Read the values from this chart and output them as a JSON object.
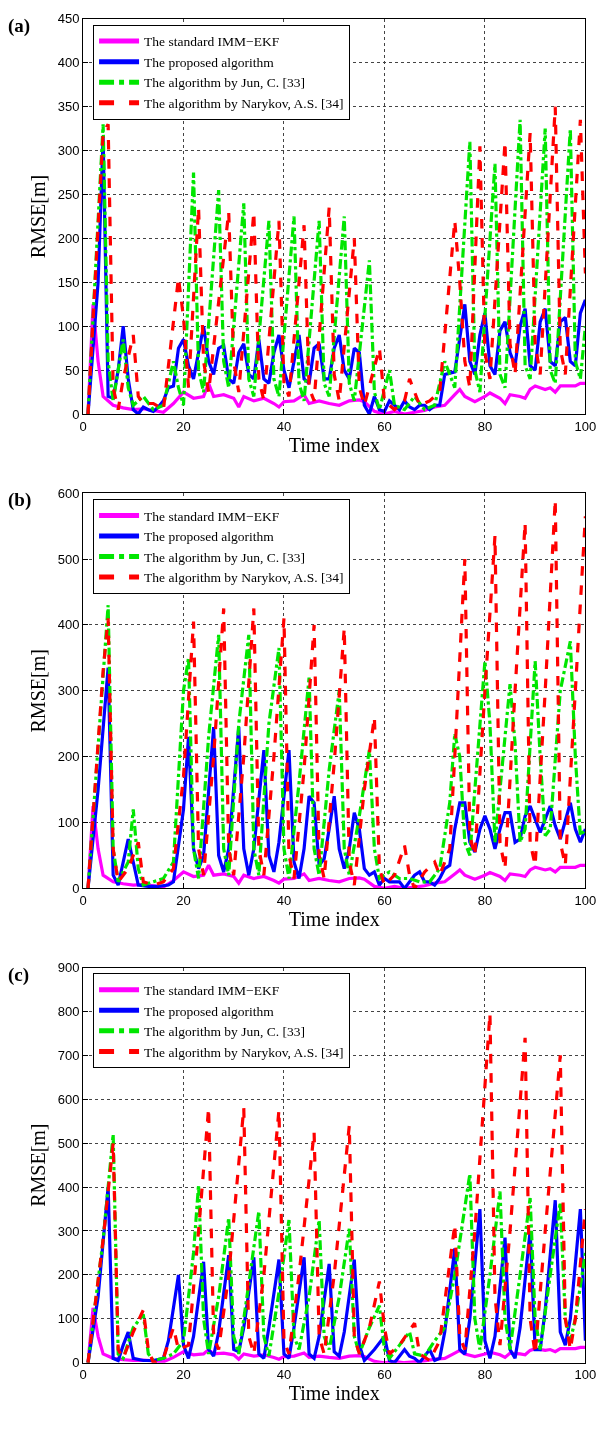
{
  "chart_data": [
    {
      "type": "line",
      "title": "(a)",
      "xlabel": "Time index",
      "ylabel": "RMSE[m]",
      "xlim": [
        0,
        100
      ],
      "xticks": [
        0,
        20,
        40,
        60,
        80,
        100
      ],
      "ylim": [
        0,
        450
      ],
      "yticks": [
        0,
        50,
        100,
        150,
        200,
        250,
        300,
        350,
        400,
        450
      ],
      "grid": true,
      "legend": "top left",
      "series": [
        {
          "name": "The standard IMM−EKF",
          "color": "#ff00ff",
          "line_style": "solid",
          "x": [
            1,
            2,
            3,
            4,
            6,
            8,
            10,
            12,
            14,
            16,
            18,
            20,
            22,
            24,
            25,
            26,
            28,
            30,
            31,
            32,
            34,
            36,
            38,
            39,
            40,
            42,
            44,
            45,
            47,
            49,
            51,
            53,
            55,
            56,
            58,
            60,
            62,
            64,
            66,
            68,
            70,
            72,
            74,
            75,
            76,
            78,
            80,
            81,
            83,
            84,
            85,
            87,
            88,
            89,
            90,
            92,
            93,
            94,
            95,
            97,
            98,
            99,
            100
          ],
          "values": [
            0,
            125,
            60,
            20,
            10,
            7,
            5,
            6,
            4,
            2,
            12,
            25,
            18,
            20,
            35,
            20,
            22,
            18,
            8,
            20,
            15,
            18,
            12,
            8,
            14,
            15,
            22,
            12,
            15,
            12,
            10,
            15,
            16,
            14,
            3,
            0,
            3,
            0,
            2,
            4,
            8,
            10,
            22,
            28,
            20,
            14,
            20,
            24,
            18,
            12,
            22,
            20,
            18,
            28,
            32,
            28,
            30,
            25,
            32,
            32,
            32,
            35,
            35
          ]
        },
        {
          "name": "The proposed algorithm",
          "color": "#0000ff",
          "line_style": "solid",
          "x": [
            1,
            3,
            4,
            5,
            6,
            7,
            8,
            9,
            10,
            11,
            12,
            13,
            14,
            15,
            16,
            17,
            18,
            19,
            20,
            21,
            22,
            24,
            25,
            26,
            27,
            28,
            29,
            30,
            31,
            32,
            33,
            34,
            35,
            36,
            37,
            38,
            39,
            40,
            41,
            42,
            43,
            44,
            45,
            46,
            47,
            48,
            49,
            50,
            51,
            52,
            53,
            54,
            55,
            56,
            57,
            58,
            59,
            60,
            61,
            62,
            63,
            64,
            65,
            66,
            67,
            68,
            69,
            70,
            71,
            72,
            74,
            76,
            77,
            78,
            79,
            80,
            81,
            82,
            83,
            84,
            85,
            86,
            87,
            88,
            89,
            90,
            91,
            92,
            93,
            94,
            95,
            96,
            97,
            98,
            99,
            100
          ],
          "values": [
            0,
            150,
            315,
            20,
            18,
            50,
            100,
            40,
            5,
            0,
            8,
            5,
            3,
            8,
            15,
            30,
            32,
            75,
            85,
            55,
            40,
            100,
            60,
            45,
            75,
            78,
            40,
            35,
            70,
            80,
            45,
            40,
            85,
            40,
            35,
            70,
            90,
            50,
            30,
            60,
            90,
            40,
            35,
            75,
            80,
            40,
            40,
            75,
            90,
            50,
            40,
            75,
            70,
            10,
            0,
            20,
            5,
            3,
            15,
            10,
            5,
            15,
            8,
            5,
            10,
            10,
            5,
            10,
            10,
            45,
            48,
            125,
            60,
            45,
            90,
            115,
            55,
            45,
            95,
            105,
            70,
            55,
            100,
            120,
            55,
            50,
            105,
            120,
            60,
            55,
            105,
            110,
            60,
            55,
            115,
            130
          ]
        },
        {
          "name": "The algorithm by Jun, C. [33]",
          "color": "#00e600",
          "line_style": "dashdot",
          "x": [
            1,
            4,
            5,
            6,
            7,
            8,
            9,
            10,
            12,
            14,
            16,
            18,
            19,
            20,
            22,
            23,
            24,
            27,
            28,
            29,
            32,
            33,
            34,
            37,
            38,
            39,
            42,
            43,
            44,
            47,
            48,
            49,
            52,
            53,
            54,
            57,
            58,
            59,
            61,
            62,
            64,
            66,
            68,
            70,
            72,
            74,
            77,
            78,
            79,
            82,
            83,
            84,
            87,
            88,
            89,
            92,
            93,
            94,
            97,
            98,
            99,
            100
          ],
          "values": [
            0,
            330,
            60,
            15,
            50,
            85,
            30,
            10,
            20,
            5,
            10,
            60,
            30,
            10,
            275,
            50,
            25,
            255,
            60,
            30,
            240,
            40,
            20,
            220,
            40,
            20,
            225,
            35,
            15,
            220,
            35,
            20,
            225,
            35,
            15,
            175,
            25,
            5,
            50,
            10,
            5,
            20,
            5,
            10,
            60,
            30,
            310,
            50,
            25,
            285,
            45,
            30,
            335,
            55,
            40,
            325,
            50,
            35,
            325,
            60,
            40,
            100
          ]
        },
        {
          "name": "The algorithm by Narykov, A.S. [34]",
          "color": "#ff0000",
          "line_style": "dashed",
          "x": [
            1,
            4,
            5,
            6,
            7,
            8,
            10,
            11,
            12,
            14,
            16,
            19,
            20,
            21,
            23,
            24,
            25,
            29,
            30,
            31,
            34,
            35,
            36,
            39,
            40,
            41,
            44,
            45,
            46,
            49,
            50,
            51,
            54,
            55,
            56,
            59,
            60,
            62,
            64,
            65,
            67,
            69,
            71,
            74,
            75,
            76,
            77,
            79,
            80,
            81,
            84,
            85,
            86,
            89,
            90,
            91,
            94,
            95,
            96,
            99,
            100
          ],
          "values": [
            0,
            320,
            330,
            30,
            5,
            40,
            90,
            20,
            12,
            12,
            5,
            155,
            110,
            30,
            235,
            60,
            25,
            230,
            60,
            25,
            230,
            40,
            15,
            220,
            35,
            20,
            215,
            30,
            15,
            235,
            45,
            15,
            200,
            30,
            10,
            75,
            15,
            5,
            15,
            40,
            10,
            15,
            25,
            220,
            150,
            60,
            30,
            305,
            70,
            40,
            310,
            80,
            45,
            320,
            80,
            45,
            350,
            75,
            45,
            335,
            160
          ]
        }
      ]
    },
    {
      "type": "line",
      "title": "(b)",
      "xlabel": "Time index",
      "ylabel": "RMSE[m]",
      "xlim": [
        0,
        100
      ],
      "xticks": [
        0,
        20,
        40,
        60,
        80,
        100
      ],
      "ylim": [
        0,
        600
      ],
      "yticks": [
        0,
        100,
        200,
        300,
        400,
        500,
        600
      ],
      "grid": true,
      "legend": "top left",
      "series": [
        {
          "name": "The standard IMM−EKF",
          "color": "#ff00ff",
          "line_style": "solid",
          "x": [
            1,
            2,
            3,
            4,
            6,
            8,
            10,
            12,
            14,
            16,
            18,
            20,
            22,
            24,
            25,
            26,
            28,
            30,
            31,
            32,
            34,
            36,
            38,
            39,
            40,
            42,
            44,
            45,
            47,
            49,
            51,
            53,
            55,
            56,
            58,
            60,
            62,
            64,
            66,
            68,
            70,
            72,
            74,
            75,
            76,
            78,
            80,
            81,
            83,
            84,
            85,
            87,
            88,
            89,
            90,
            92,
            93,
            94,
            95,
            97,
            98,
            99,
            100
          ],
          "values": [
            0,
            125,
            60,
            20,
            10,
            7,
            5,
            6,
            4,
            2,
            12,
            25,
            18,
            20,
            35,
            20,
            22,
            18,
            8,
            20,
            15,
            18,
            12,
            8,
            14,
            15,
            22,
            12,
            15,
            12,
            10,
            15,
            16,
            14,
            3,
            0,
            3,
            0,
            2,
            4,
            8,
            10,
            22,
            28,
            20,
            14,
            20,
            24,
            18,
            12,
            22,
            20,
            18,
            28,
            32,
            28,
            30,
            25,
            32,
            32,
            32,
            35,
            35
          ]
        },
        {
          "name": "The proposed algorithm",
          "color": "#0000ff",
          "line_style": "solid",
          "x": [
            1,
            3,
            5,
            6,
            7,
            9,
            10,
            11,
            13,
            15,
            17,
            18,
            20,
            21,
            22,
            23,
            24,
            26,
            27,
            28,
            29,
            31,
            32,
            33,
            34,
            36,
            37,
            38,
            39,
            41,
            42,
            43,
            44,
            45,
            46,
            47,
            48,
            49,
            50,
            51,
            52,
            53,
            54,
            55,
            56,
            57,
            58,
            59,
            60,
            61,
            63,
            64,
            66,
            67,
            68,
            69,
            70,
            71,
            72,
            73,
            74,
            75,
            76,
            77,
            78,
            79,
            80,
            81,
            82,
            83,
            84,
            85,
            86,
            87,
            88,
            89,
            90,
            91,
            93,
            94,
            95,
            97,
            98,
            99,
            100
          ],
          "values": [
            0,
            150,
            335,
            20,
            5,
            75,
            40,
            5,
            3,
            3,
            5,
            10,
            120,
            230,
            60,
            30,
            50,
            245,
            50,
            25,
            60,
            245,
            60,
            20,
            60,
            210,
            50,
            25,
            70,
            210,
            40,
            15,
            60,
            140,
            130,
            35,
            45,
            90,
            140,
            60,
            30,
            60,
            115,
            90,
            30,
            20,
            25,
            5,
            15,
            10,
            10,
            0,
            20,
            25,
            10,
            10,
            5,
            15,
            30,
            35,
            90,
            130,
            130,
            70,
            55,
            90,
            110,
            90,
            60,
            90,
            115,
            115,
            70,
            75,
            110,
            125,
            105,
            85,
            125,
            95,
            75,
            130,
            90,
            70,
            90
          ]
        },
        {
          "name": "The algorithm by Jun, C. [33]",
          "color": "#00e600",
          "line_style": "dashdot",
          "x": [
            1,
            5,
            6,
            7,
            9,
            10,
            11,
            12,
            14,
            16,
            18,
            20,
            21,
            22,
            23,
            25,
            27,
            28,
            29,
            31,
            33,
            34,
            35,
            37,
            39,
            40,
            41,
            43,
            45,
            46,
            47,
            49,
            51,
            52,
            53,
            55,
            57,
            58,
            59,
            61,
            63,
            65,
            67,
            69,
            71,
            73,
            74,
            75,
            76,
            77,
            78,
            80,
            81,
            82,
            83,
            85,
            86,
            87,
            88,
            90,
            91,
            92,
            93,
            95,
            97,
            98,
            99,
            100
          ],
          "values": [
            0,
            430,
            60,
            10,
            40,
            120,
            30,
            5,
            10,
            15,
            40,
            300,
            350,
            60,
            15,
            230,
            385,
            60,
            20,
            250,
            385,
            60,
            20,
            250,
            365,
            60,
            15,
            160,
            320,
            60,
            20,
            180,
            300,
            60,
            20,
            110,
            210,
            60,
            15,
            25,
            15,
            15,
            10,
            10,
            30,
            130,
            235,
            200,
            70,
            50,
            150,
            345,
            250,
            70,
            150,
            310,
            220,
            70,
            90,
            345,
            200,
            80,
            90,
            300,
            375,
            200,
            80,
            90
          ]
        },
        {
          "name": "The algorithm by Narykov, A.S. [34]",
          "color": "#ff0000",
          "line_style": "dashed",
          "x": [
            1,
            4,
            5,
            6,
            7,
            9,
            11,
            12,
            14,
            16,
            18,
            20,
            22,
            23,
            24,
            26,
            28,
            29,
            30,
            32,
            34,
            35,
            36,
            38,
            40,
            41,
            42,
            44,
            46,
            47,
            48,
            50,
            52,
            53,
            54,
            56,
            58,
            59,
            60,
            62,
            64,
            65,
            66,
            68,
            70,
            71,
            73,
            74,
            76,
            77,
            78,
            80,
            82,
            83,
            84,
            86,
            88,
            89,
            90,
            92,
            94,
            95,
            96,
            98,
            100
          ],
          "values": [
            0,
            330,
            410,
            60,
            10,
            30,
            70,
            10,
            5,
            10,
            30,
            170,
            405,
            60,
            20,
            200,
            425,
            60,
            20,
            200,
            425,
            60,
            20,
            200,
            410,
            50,
            15,
            180,
            400,
            50,
            15,
            190,
            395,
            40,
            5,
            150,
            260,
            30,
            5,
            20,
            65,
            20,
            0,
            25,
            40,
            20,
            60,
            200,
            500,
            80,
            50,
            300,
            535,
            70,
            30,
            300,
            555,
            70,
            35,
            300,
            590,
            70,
            35,
            300,
            565
          ]
        }
      ]
    },
    {
      "type": "line",
      "title": "(c)",
      "xlabel": "Time index",
      "ylabel": "RMSE[m]",
      "xlim": [
        0,
        100
      ],
      "xticks": [
        0,
        20,
        40,
        60,
        80,
        100
      ],
      "ylim": [
        0,
        900
      ],
      "yticks": [
        0,
        100,
        200,
        300,
        400,
        500,
        600,
        700,
        800,
        900
      ],
      "grid": true,
      "legend": "top left",
      "series": [
        {
          "name": "The standard IMM−EKF",
          "color": "#ff00ff",
          "line_style": "solid",
          "x": [
            1,
            2,
            3,
            4,
            6,
            8,
            10,
            12,
            14,
            16,
            18,
            20,
            22,
            24,
            25,
            26,
            28,
            30,
            31,
            32,
            34,
            36,
            38,
            39,
            40,
            42,
            44,
            45,
            47,
            49,
            51,
            53,
            55,
            56,
            58,
            60,
            62,
            64,
            66,
            68,
            70,
            72,
            74,
            75,
            76,
            78,
            80,
            81,
            83,
            84,
            85,
            87,
            88,
            89,
            90,
            92,
            93,
            94,
            95,
            97,
            98,
            99,
            100
          ],
          "values": [
            0,
            125,
            60,
            20,
            10,
            7,
            5,
            6,
            4,
            2,
            12,
            25,
            18,
            20,
            30,
            20,
            22,
            18,
            8,
            20,
            15,
            18,
            12,
            8,
            14,
            15,
            22,
            12,
            15,
            12,
            10,
            15,
            16,
            14,
            3,
            0,
            3,
            0,
            2,
            4,
            8,
            10,
            22,
            28,
            20,
            14,
            20,
            24,
            18,
            12,
            22,
            20,
            18,
            28,
            32,
            28,
            30,
            25,
            32,
            32,
            32,
            35,
            35
          ]
        },
        {
          "name": "The proposed algorithm",
          "color": "#0000ff",
          "line_style": "solid",
          "x": [
            1,
            3,
            5,
            6,
            7,
            8,
            9,
            10,
            12,
            14,
            16,
            17,
            19,
            20,
            21,
            22,
            24,
            25,
            26,
            27,
            29,
            30,
            31,
            32,
            34,
            35,
            36,
            37,
            39,
            40,
            41,
            42,
            44,
            45,
            46,
            47,
            49,
            50,
            51,
            52,
            54,
            55,
            56,
            58,
            60,
            61,
            62,
            64,
            65,
            66,
            67,
            69,
            70,
            71,
            72,
            74,
            75,
            76,
            77,
            79,
            80,
            81,
            82,
            84,
            85,
            86,
            87,
            89,
            90,
            91,
            92,
            94,
            95,
            96,
            97,
            99,
            100
          ],
          "values": [
            0,
            150,
            400,
            10,
            5,
            40,
            70,
            10,
            5,
            5,
            10,
            50,
            200,
            40,
            10,
            60,
            230,
            30,
            15,
            70,
            245,
            30,
            25,
            80,
            240,
            20,
            10,
            80,
            235,
            20,
            10,
            80,
            240,
            20,
            10,
            60,
            225,
            25,
            15,
            70,
            235,
            40,
            5,
            30,
            60,
            5,
            0,
            30,
            15,
            10,
            0,
            30,
            5,
            10,
            70,
            260,
            30,
            20,
            100,
            350,
            50,
            10,
            60,
            285,
            30,
            10,
            80,
            300,
            30,
            30,
            120,
            370,
            70,
            40,
            100,
            350,
            50
          ]
        },
        {
          "name": "The algorithm by Jun, C. [33]",
          "color": "#00e600",
          "line_style": "dashdot",
          "x": [
            1,
            4,
            6,
            7,
            8,
            10,
            12,
            13,
            14,
            16,
            18,
            20,
            22,
            23,
            24,
            25,
            27,
            29,
            30,
            31,
            33,
            35,
            36,
            37,
            39,
            41,
            42,
            43,
            45,
            47,
            48,
            49,
            51,
            53,
            54,
            55,
            57,
            59,
            60,
            61,
            63,
            65,
            66,
            68,
            70,
            72,
            74,
            77,
            78,
            79,
            81,
            83,
            84,
            85,
            87,
            89,
            90,
            91,
            93,
            95,
            96,
            97,
            98,
            100
          ],
          "values": [
            0,
            280,
            520,
            20,
            10,
            80,
            110,
            20,
            5,
            10,
            20,
            50,
            250,
            405,
            100,
            20,
            150,
            330,
            60,
            20,
            180,
            345,
            60,
            15,
            160,
            325,
            60,
            30,
            150,
            325,
            60,
            30,
            150,
            305,
            60,
            20,
            80,
            130,
            30,
            10,
            40,
            70,
            20,
            15,
            50,
            80,
            200,
            430,
            100,
            30,
            200,
            390,
            100,
            30,
            200,
            375,
            100,
            30,
            200,
            365,
            100,
            50,
            100,
            250
          ]
        },
        {
          "name": "The algorithm by Narykov, A.S. [34]",
          "color": "#ff0000",
          "line_style": "dashed",
          "x": [
            1,
            4,
            6,
            7,
            8,
            10,
            12,
            13,
            14,
            16,
            18,
            19,
            21,
            23,
            25,
            26,
            27,
            29,
            32,
            33,
            34,
            36,
            39,
            40,
            41,
            43,
            46,
            47,
            48,
            50,
            53,
            54,
            55,
            57,
            59,
            60,
            61,
            63,
            66,
            67,
            69,
            71,
            74,
            75,
            76,
            78,
            81,
            82,
            83,
            85,
            88,
            89,
            90,
            92,
            95,
            96,
            97,
            98,
            100
          ],
          "values": [
            0,
            280,
            500,
            30,
            10,
            70,
            120,
            30,
            0,
            10,
            80,
            30,
            40,
            300,
            580,
            60,
            30,
            200,
            580,
            60,
            20,
            200,
            575,
            50,
            20,
            200,
            525,
            60,
            20,
            200,
            540,
            60,
            20,
            80,
            185,
            80,
            20,
            40,
            90,
            20,
            5,
            50,
            315,
            60,
            30,
            300,
            795,
            150,
            40,
            300,
            740,
            100,
            20,
            300,
            700,
            100,
            30,
            100,
            350
          ]
        }
      ]
    }
  ]
}
